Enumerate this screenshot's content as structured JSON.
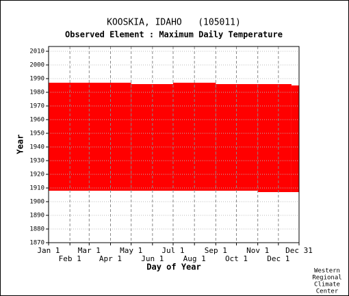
{
  "chart_data": {
    "type": "coverage",
    "title": "KOOSKIA, IDAHO   (105011)",
    "subtitle": "Observed Element : Maximum Daily Temperature",
    "x_label": "Day of Year",
    "y_label": "Year",
    "color": "#ff0000",
    "xlim": [
      1,
      365
    ],
    "xticks": [
      {
        "value": 1,
        "label": "Jan 1"
      },
      {
        "value": 32,
        "label": "Feb 1"
      },
      {
        "value": 60,
        "label": "Mar 1"
      },
      {
        "value": 91,
        "label": "Apr 1"
      },
      {
        "value": 121,
        "label": "May 1"
      },
      {
        "value": 152,
        "label": "Jun 1"
      },
      {
        "value": 182,
        "label": "Jul 1"
      },
      {
        "value": 213,
        "label": "Aug 1"
      },
      {
        "value": 244,
        "label": "Sep 1"
      },
      {
        "value": 274,
        "label": "Oct 1"
      },
      {
        "value": 305,
        "label": "Nov 1"
      },
      {
        "value": 335,
        "label": "Dec 1"
      },
      {
        "value": 365,
        "label": "Dec 31"
      }
    ],
    "ylim": [
      1870,
      2010
    ],
    "yticks": [
      1870,
      1880,
      1890,
      1900,
      1910,
      1920,
      1930,
      1940,
      1950,
      1960,
      1970,
      1980,
      1990,
      2000,
      2010
    ],
    "grid": true,
    "blocks": [
      {
        "days": [
          1,
          121
        ],
        "years": [
          1908,
          1987
        ]
      },
      {
        "days": [
          121,
          182
        ],
        "years": [
          1908,
          1986
        ]
      },
      {
        "days": [
          182,
          244
        ],
        "years": [
          1908,
          1987
        ]
      },
      {
        "days": [
          244,
          305
        ],
        "years": [
          1908,
          1986
        ]
      },
      {
        "days": [
          305,
          354
        ],
        "years": [
          1907,
          1986
        ]
      },
      {
        "days": [
          354,
          365
        ],
        "years": [
          1907,
          1985
        ]
      }
    ],
    "credit": [
      "Western",
      "Regional",
      "Climate",
      "Center"
    ]
  }
}
